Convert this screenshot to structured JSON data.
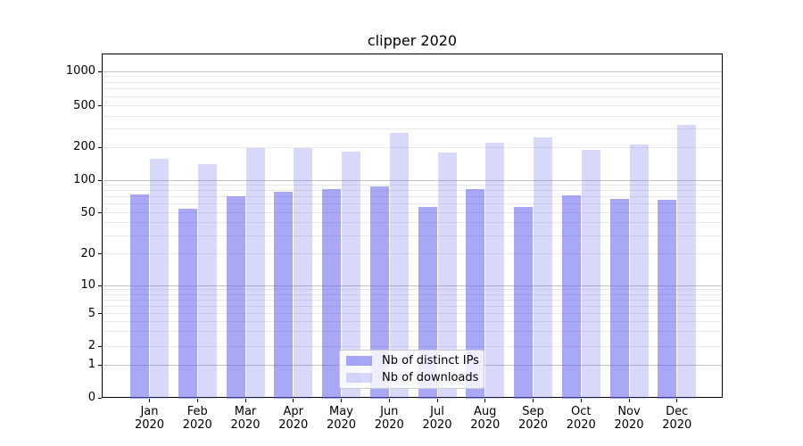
{
  "title": "clipper 2020",
  "colors": {
    "bar_base": "#6464f0",
    "ips_bar": "rgba(100,100,240,0.56)",
    "downloads_bar": "rgba(100,100,240,0.25)",
    "grid_major": "#c2c2c2",
    "grid_minor": "#e9e9e9",
    "spine": "#000000",
    "legend_border": "#cccccc"
  },
  "legend": {
    "items": [
      {
        "label": "Nb of distinct IPs",
        "swatch": "ips"
      },
      {
        "label": "Nb of downloads",
        "swatch": "downloads"
      }
    ]
  },
  "chart_data": {
    "type": "bar",
    "title": "clipper 2020",
    "categories": [
      "Jan 2020",
      "Feb 2020",
      "Mar 2020",
      "Apr 2020",
      "May 2020",
      "Jun 2020",
      "Jul 2020",
      "Aug 2020",
      "Sep 2020",
      "Oct 2020",
      "Nov 2020",
      "Dec 2020"
    ],
    "series": [
      {
        "name": "Nb of distinct IPs",
        "values": [
          74,
          54,
          71,
          78,
          82,
          88,
          57,
          82,
          57,
          73,
          67,
          66
        ],
        "color": "rgba(100,100,240,0.56)"
      },
      {
        "name": "Nb of downloads",
        "values": [
          157,
          141,
          197,
          198,
          184,
          274,
          180,
          220,
          250,
          189,
          214,
          328
        ],
        "color": "rgba(100,100,240,0.25)"
      }
    ],
    "xlabel": "",
    "ylabel": "",
    "yscale": "symlog",
    "ylim": [
      0,
      1400
    ],
    "y_ticks": [
      0,
      1,
      2,
      5,
      10,
      20,
      50,
      100,
      200,
      500,
      1000
    ],
    "y_minor_ticks": [
      3,
      4,
      6,
      7,
      8,
      9,
      30,
      40,
      60,
      70,
      80,
      90,
      300,
      400,
      600,
      700,
      800,
      900
    ],
    "grid": true,
    "legend_position": "lower center"
  }
}
